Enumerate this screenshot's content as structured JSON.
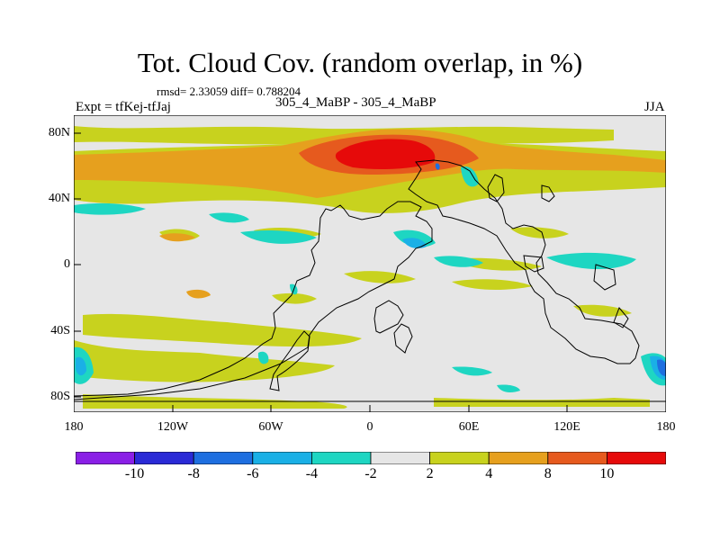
{
  "title": "Tot. Cloud Cov. (random overlap, in %)",
  "stats": "rmsd= 2.33059  diff= 0.788204",
  "experiment": "Expt = tfKej-tfJaj",
  "subtitle": "305_4_MaBP - 305_4_MaBP",
  "season": "JJA",
  "x_ticks": [
    "180",
    "120W",
    "60W",
    "0",
    "60E",
    "120E",
    "180"
  ],
  "y_ticks": [
    "80N",
    "40N",
    "0",
    "40S",
    "80S"
  ],
  "colorbar": {
    "labels": [
      "-10",
      "-8",
      "-6",
      "-4",
      "-2",
      "2",
      "4",
      "8",
      "10"
    ],
    "colors": [
      "#8a1fe6",
      "#2a2ad6",
      "#1e6fe0",
      "#1ab0e6",
      "#1ed6c2",
      "#e6e6e6",
      "#c8d21e",
      "#e6a01e",
      "#e65a1e",
      "#e60a0a"
    ]
  },
  "map_palette": {
    "land_outline": "#000000",
    "background": "#e6e6e6"
  }
}
